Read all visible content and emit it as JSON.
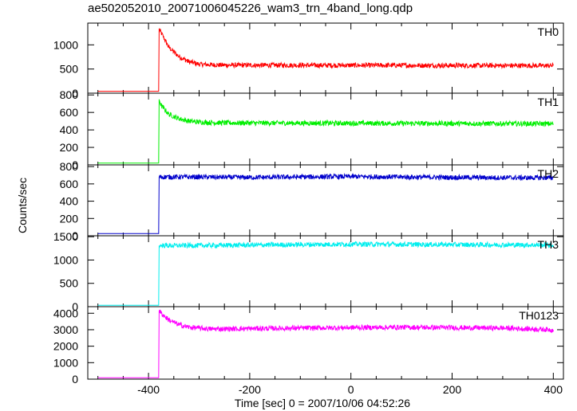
{
  "title": "ae502052010_20071006045226_wam3_trn_4band_long.qdp",
  "ylabel": "Counts/sec",
  "xlabel": "Time [sec] 0 = 2007/10/06 04:52:26",
  "chart_data": [
    {
      "type": "line",
      "label": "TH0",
      "color": "#ff0000",
      "xlim": [
        -520,
        420
      ],
      "ylim": [
        0,
        1450
      ],
      "yticks": [
        "0",
        "500",
        "1000"
      ],
      "ytick_values": [
        0,
        500,
        1000
      ],
      "xticks": [
        "-400",
        "-200",
        "0",
        "200",
        "400"
      ],
      "xtick_values": [
        -400,
        -200,
        0,
        200,
        400
      ],
      "series": [
        {
          "x": [
            -500,
            -380,
            -379,
            -375,
            -360,
            -340,
            -320,
            -300,
            -280,
            -250,
            400
          ],
          "y": [
            40,
            40,
            1330,
            1250,
            950,
            760,
            650,
            600,
            590,
            580,
            570
          ]
        }
      ]
    },
    {
      "type": "line",
      "label": "TH1",
      "color": "#00ee00",
      "xlim": [
        -520,
        420
      ],
      "ylim": [
        0,
        820
      ],
      "yticks": [
        "0",
        "200",
        "400",
        "600",
        "800"
      ],
      "ytick_values": [
        0,
        200,
        400,
        600,
        800
      ],
      "xticks": [
        "-400",
        "-200",
        "0",
        "200",
        "400"
      ],
      "xtick_values": [
        -400,
        -200,
        0,
        200,
        400
      ],
      "series": [
        {
          "x": [
            -500,
            -380,
            -379,
            -375,
            -360,
            -340,
            -320,
            -300,
            -280,
            -250,
            400
          ],
          "y": [
            20,
            20,
            750,
            680,
            580,
            530,
            500,
            490,
            485,
            480,
            470
          ]
        }
      ]
    },
    {
      "type": "line",
      "label": "TH2",
      "color": "#0000cc",
      "xlim": [
        -520,
        420
      ],
      "ylim": [
        0,
        820
      ],
      "yticks": [
        "0",
        "200",
        "400",
        "600",
        "800"
      ],
      "ytick_values": [
        0,
        200,
        400,
        600,
        800
      ],
      "xticks": [
        "-400",
        "-200",
        "0",
        "200",
        "400"
      ],
      "xtick_values": [
        -400,
        -200,
        0,
        200,
        400
      ],
      "series": [
        {
          "x": [
            -500,
            -380,
            -379,
            -300,
            -200,
            0,
            200,
            400
          ],
          "y": [
            25,
            25,
            680,
            680,
            675,
            685,
            675,
            670
          ]
        }
      ]
    },
    {
      "type": "line",
      "label": "TH3",
      "color": "#00eeee",
      "xlim": [
        -520,
        420
      ],
      "ylim": [
        0,
        1520
      ],
      "yticks": [
        "0",
        "500",
        "1000",
        "1500"
      ],
      "ytick_values": [
        0,
        500,
        1000,
        1500
      ],
      "xticks": [
        "-400",
        "-200",
        "0",
        "200",
        "400"
      ],
      "xtick_values": [
        -400,
        -200,
        0,
        200,
        400
      ],
      "series": [
        {
          "x": [
            -500,
            -380,
            -379,
            -300,
            -200,
            0,
            200,
            400
          ],
          "y": [
            30,
            30,
            1310,
            1310,
            1320,
            1340,
            1330,
            1320
          ]
        }
      ]
    },
    {
      "type": "line",
      "label": "TH0123",
      "color": "#ff00ff",
      "xlim": [
        -520,
        420
      ],
      "ylim": [
        0,
        4400
      ],
      "yticks": [
        "0",
        "1000",
        "2000",
        "3000",
        "4000"
      ],
      "ytick_values": [
        0,
        1000,
        2000,
        3000,
        4000
      ],
      "xticks": [
        "-400",
        "-200",
        "0",
        "200",
        "400"
      ],
      "xtick_values": [
        -400,
        -200,
        0,
        200,
        400
      ],
      "series": [
        {
          "x": [
            -500,
            -380,
            -379,
            -375,
            -360,
            -340,
            -320,
            -300,
            -280,
            -250,
            -100,
            100,
            300,
            400
          ],
          "y": [
            80,
            80,
            4150,
            4000,
            3600,
            3300,
            3150,
            3100,
            3050,
            3050,
            3100,
            3150,
            3100,
            3000
          ]
        }
      ]
    }
  ]
}
